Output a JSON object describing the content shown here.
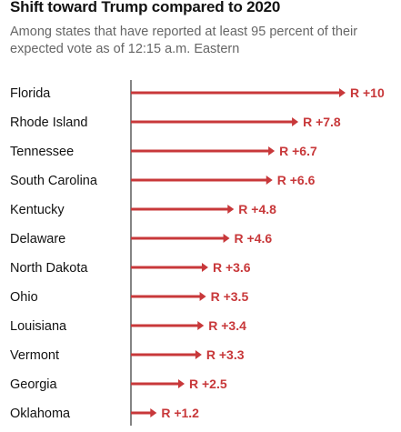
{
  "header": {
    "title": "Shift toward Trump compared to 2020",
    "subtitle": "Among states that have reported at least 95 percent of their expected vote as of 12:15 a.m. Eastern"
  },
  "colors": {
    "bar": "#c8383a",
    "label_text": "#c8383a",
    "state_text": "#121212",
    "axis_line": "#333333"
  },
  "chart_data": {
    "type": "bar",
    "orientation": "horizontal",
    "categories": [
      "Florida",
      "Rhode Island",
      "Tennessee",
      "South Carolina",
      "Kentucky",
      "Delaware",
      "North Dakota",
      "Ohio",
      "Louisiana",
      "Vermont",
      "Georgia",
      "Oklahoma"
    ],
    "values": [
      10,
      7.8,
      6.7,
      6.6,
      4.8,
      4.6,
      3.6,
      3.5,
      3.4,
      3.3,
      2.5,
      1.2
    ],
    "labels": [
      "R +10",
      "R +7.8",
      "R +6.7",
      "R +6.6",
      "R +4.8",
      "R +4.6",
      "R +3.6",
      "R +3.5",
      "R +3.4",
      "R +3.3",
      "R +2.5",
      "R +1.2"
    ],
    "title": "Shift toward Trump compared to 2020",
    "xlabel": "",
    "ylabel": "",
    "xlim": [
      0,
      10
    ],
    "grid": false,
    "legend": "none"
  }
}
